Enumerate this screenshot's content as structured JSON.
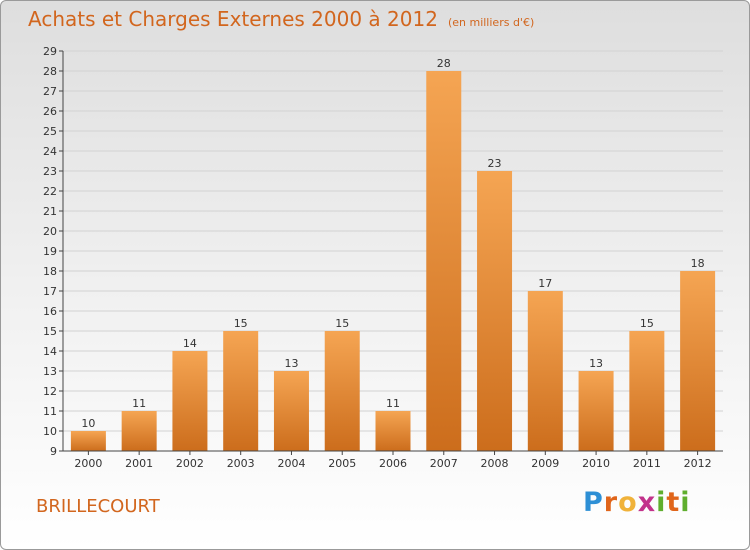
{
  "header": {
    "title": "Achats et Charges Externes 2000 à 2012",
    "unit": "(en milliers d'€)"
  },
  "footer": {
    "commune": "BRILLECOURT",
    "logo": "Proxiti"
  },
  "colors": {
    "title": "#d2661e",
    "bar_top": "#f5a553",
    "bar_bottom": "#cc6d1c",
    "grid": "#d2d2d2"
  },
  "chart_data": {
    "type": "bar",
    "title": "Achats et Charges Externes 2000 à 2012",
    "subtitle": "(en milliers d'€)",
    "xlabel": "",
    "ylabel": "",
    "categories": [
      "2000",
      "2001",
      "2002",
      "2003",
      "2004",
      "2005",
      "2006",
      "2007",
      "2008",
      "2009",
      "2010",
      "2011",
      "2012"
    ],
    "values": [
      10,
      11,
      14,
      15,
      13,
      15,
      11,
      28,
      23,
      17,
      13,
      15,
      18
    ],
    "ylim": [
      9,
      29
    ],
    "yticks": [
      9,
      10,
      11,
      12,
      13,
      14,
      15,
      16,
      17,
      18,
      19,
      20,
      21,
      22,
      23,
      24,
      25,
      26,
      27,
      28,
      29
    ],
    "grid": true,
    "legend": "none"
  }
}
